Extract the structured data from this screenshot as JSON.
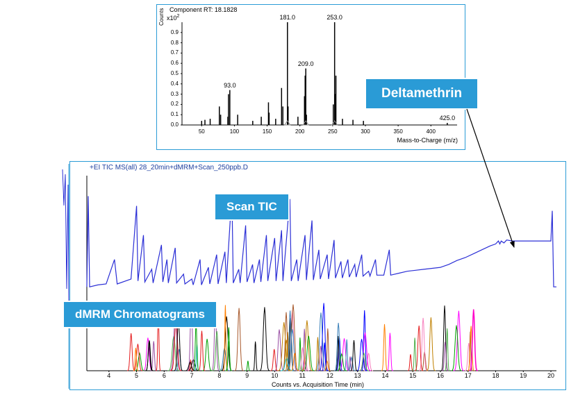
{
  "colors": {
    "panel_border": "#2a9bd6",
    "badge_bg": "#2a9bd6",
    "badge_border": "#ffffff",
    "badge_text": "#ffffff",
    "ms_peak": "#000000",
    "tic_line": "#2b2fd6",
    "axis": "#000000",
    "header_text": "#1e3f9e",
    "background": "#ffffff",
    "mrm_palette": [
      "#e41a1c",
      "#377eb8",
      "#4daf4a",
      "#984ea3",
      "#ff7f00",
      "#a65628",
      "#f781bf",
      "#17becf",
      "#ff00ff",
      "#00a000",
      "#0000ff",
      "#c08000",
      "#000000"
    ]
  },
  "top_chart": {
    "title": "Component RT: 18.1828",
    "y_unit": "x10",
    "y_sup": "2",
    "y_axis_label": "Counts",
    "x_axis_label": "Mass-to-Charge (m/z)",
    "xlim": [
      20,
      440
    ],
    "ylim": [
      0,
      1.0
    ],
    "yticks": [
      0,
      0.1,
      0.2,
      0.3,
      0.4,
      0.5,
      0.6,
      0.7,
      0.8,
      0.9
    ],
    "xticks": [
      50,
      100,
      150,
      200,
      250,
      300,
      350,
      400
    ],
    "peak_labels": [
      {
        "mz": 93.0,
        "h": 0.34
      },
      {
        "mz": 181.0,
        "h": 1.0
      },
      {
        "mz": 209.0,
        "h": 0.55
      },
      {
        "mz": 253.0,
        "h": 1.0
      },
      {
        "mz": 425.0,
        "h": 0.02
      }
    ],
    "peaks": [
      {
        "mz": 50,
        "h": 0.04
      },
      {
        "mz": 55,
        "h": 0.05
      },
      {
        "mz": 63,
        "h": 0.06
      },
      {
        "mz": 77,
        "h": 0.18
      },
      {
        "mz": 79,
        "h": 0.1
      },
      {
        "mz": 90,
        "h": 0.08
      },
      {
        "mz": 91,
        "h": 0.3
      },
      {
        "mz": 93,
        "h": 0.34
      },
      {
        "mz": 105,
        "h": 0.1
      },
      {
        "mz": 128,
        "h": 0.04
      },
      {
        "mz": 141,
        "h": 0.08
      },
      {
        "mz": 152,
        "h": 0.22
      },
      {
        "mz": 153,
        "h": 0.12
      },
      {
        "mz": 163,
        "h": 0.06
      },
      {
        "mz": 172,
        "h": 0.36
      },
      {
        "mz": 174,
        "h": 0.18
      },
      {
        "mz": 181,
        "h": 1.0
      },
      {
        "mz": 182,
        "h": 0.18
      },
      {
        "mz": 197,
        "h": 0.08
      },
      {
        "mz": 207,
        "h": 0.28
      },
      {
        "mz": 208,
        "h": 0.48
      },
      {
        "mz": 209,
        "h": 0.55
      },
      {
        "mz": 210,
        "h": 0.1
      },
      {
        "mz": 251,
        "h": 0.2
      },
      {
        "mz": 253,
        "h": 1.0
      },
      {
        "mz": 254,
        "h": 0.3
      },
      {
        "mz": 255,
        "h": 0.48
      },
      {
        "mz": 265,
        "h": 0.06
      },
      {
        "mz": 281,
        "h": 0.05
      },
      {
        "mz": 297,
        "h": 0.04
      },
      {
        "mz": 425,
        "h": 0.02
      }
    ],
    "triangles_x": [
      181,
      209,
      253
    ]
  },
  "bottom_chart": {
    "header": "+EI TIC MS(all) 28_20min+dMRM+Scan_250ppb.D",
    "x_axis_label": "Counts vs. Acquisition Time (min)",
    "xlim": [
      3.2,
      20.2
    ],
    "ylim": [
      0,
      1.0
    ],
    "xticks": [
      4,
      5,
      6,
      7,
      8,
      9,
      10,
      11,
      12,
      13,
      14,
      15,
      16,
      17,
      18,
      19,
      20
    ],
    "tic_points": [
      [
        3.2,
        0.02
      ],
      [
        3.25,
        0.95
      ],
      [
        3.3,
        0.02
      ],
      [
        3.6,
        0.04
      ],
      [
        3.9,
        0.05
      ],
      [
        4.2,
        0.3
      ],
      [
        4.3,
        0.05
      ],
      [
        4.8,
        0.1
      ],
      [
        5.0,
        0.85
      ],
      [
        5.05,
        0.08
      ],
      [
        5.25,
        0.55
      ],
      [
        5.3,
        0.07
      ],
      [
        5.55,
        0.2
      ],
      [
        5.6,
        0.06
      ],
      [
        5.9,
        0.45
      ],
      [
        5.95,
        0.07
      ],
      [
        6.1,
        0.3
      ],
      [
        6.15,
        0.06
      ],
      [
        6.4,
        0.42
      ],
      [
        6.45,
        0.06
      ],
      [
        6.7,
        0.15
      ],
      [
        6.75,
        0.05
      ],
      [
        7.0,
        0.1
      ],
      [
        7.05,
        0.04
      ],
      [
        7.3,
        0.3
      ],
      [
        7.35,
        0.04
      ],
      [
        7.6,
        0.22
      ],
      [
        7.65,
        0.05
      ],
      [
        7.9,
        0.35
      ],
      [
        7.95,
        0.05
      ],
      [
        8.2,
        0.38
      ],
      [
        8.25,
        0.06
      ],
      [
        8.45,
        0.98
      ],
      [
        8.5,
        0.06
      ],
      [
        8.7,
        0.2
      ],
      [
        8.75,
        0.06
      ],
      [
        8.95,
        0.65
      ],
      [
        9.0,
        0.07
      ],
      [
        9.2,
        0.25
      ],
      [
        9.25,
        0.06
      ],
      [
        9.45,
        0.3
      ],
      [
        9.5,
        0.07
      ],
      [
        9.7,
        0.55
      ],
      [
        9.75,
        0.08
      ],
      [
        10.0,
        0.52
      ],
      [
        10.05,
        0.08
      ],
      [
        10.25,
        0.6
      ],
      [
        10.3,
        0.08
      ],
      [
        10.55,
        0.92
      ],
      [
        10.6,
        0.08
      ],
      [
        10.8,
        0.3
      ],
      [
        10.85,
        0.08
      ],
      [
        11.1,
        0.55
      ],
      [
        11.15,
        0.09
      ],
      [
        11.35,
        0.7
      ],
      [
        11.4,
        0.09
      ],
      [
        11.6,
        0.4
      ],
      [
        11.65,
        0.1
      ],
      [
        11.9,
        0.35
      ],
      [
        11.95,
        0.1
      ],
      [
        12.15,
        0.5
      ],
      [
        12.2,
        0.11
      ],
      [
        12.4,
        0.28
      ],
      [
        12.45,
        0.11
      ],
      [
        12.65,
        0.3
      ],
      [
        12.7,
        0.12
      ],
      [
        12.9,
        0.25
      ],
      [
        12.95,
        0.12
      ],
      [
        13.15,
        0.35
      ],
      [
        13.2,
        0.13
      ],
      [
        13.4,
        0.18
      ],
      [
        13.45,
        0.13
      ],
      [
        13.65,
        0.3
      ],
      [
        13.7,
        0.14
      ],
      [
        13.9,
        0.14
      ],
      [
        13.95,
        0.14
      ],
      [
        14.15,
        0.4
      ],
      [
        14.2,
        0.14
      ],
      [
        14.5,
        0.16
      ],
      [
        14.8,
        0.18
      ],
      [
        15.1,
        0.19
      ],
      [
        15.4,
        0.2
      ],
      [
        15.7,
        0.21
      ],
      [
        16.0,
        0.22
      ],
      [
        16.3,
        0.25
      ],
      [
        16.6,
        0.29
      ],
      [
        16.9,
        0.32
      ],
      [
        17.2,
        0.36
      ],
      [
        17.5,
        0.4
      ],
      [
        17.8,
        0.44
      ],
      [
        18.0,
        0.46
      ],
      [
        18.1,
        0.49
      ],
      [
        18.15,
        0.46
      ],
      [
        18.2,
        0.49
      ],
      [
        18.3,
        0.47
      ],
      [
        18.4,
        0.5
      ],
      [
        18.6,
        0.49
      ],
      [
        18.9,
        0.49
      ],
      [
        19.3,
        0.49
      ],
      [
        19.7,
        0.49
      ],
      [
        19.9,
        0.49
      ],
      [
        20.0,
        0.49
      ],
      [
        20.05,
        0.8
      ],
      [
        20.1,
        0.02
      ],
      [
        20.2,
        0.02
      ]
    ],
    "mrm_seed": 7
  },
  "labels": {
    "deltamethrin": "Deltamethrin",
    "scan_tic": "Scan TIC",
    "dmrm": "dMRM Chromatograms"
  }
}
